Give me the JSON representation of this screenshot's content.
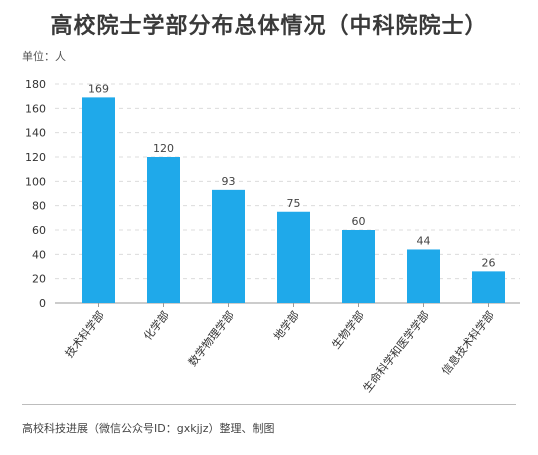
{
  "title": "高校院士学部分布总体情况（中科院院士）",
  "unit_label": "单位：人",
  "footer": "高校科技进展（微信公众号ID：gxkjjz）整理、制图",
  "chart_data": {
    "type": "bar",
    "title": "高校院士学部分布总体情况（中科院院士）",
    "ylabel": "单位：人",
    "xlabel": "",
    "categories": [
      "技术科学部",
      "化学部",
      "数学物理学部",
      "地学部",
      "生物学部",
      "生命科学和医学学部",
      "信息技术科学部"
    ],
    "values": [
      169,
      120,
      93,
      75,
      60,
      44,
      26
    ],
    "ylim": [
      0,
      180
    ],
    "yticks": [
      0,
      20,
      40,
      60,
      80,
      100,
      120,
      140,
      160,
      180
    ],
    "grid": true,
    "bar_color": "#1fa9ea",
    "legend": "none"
  }
}
